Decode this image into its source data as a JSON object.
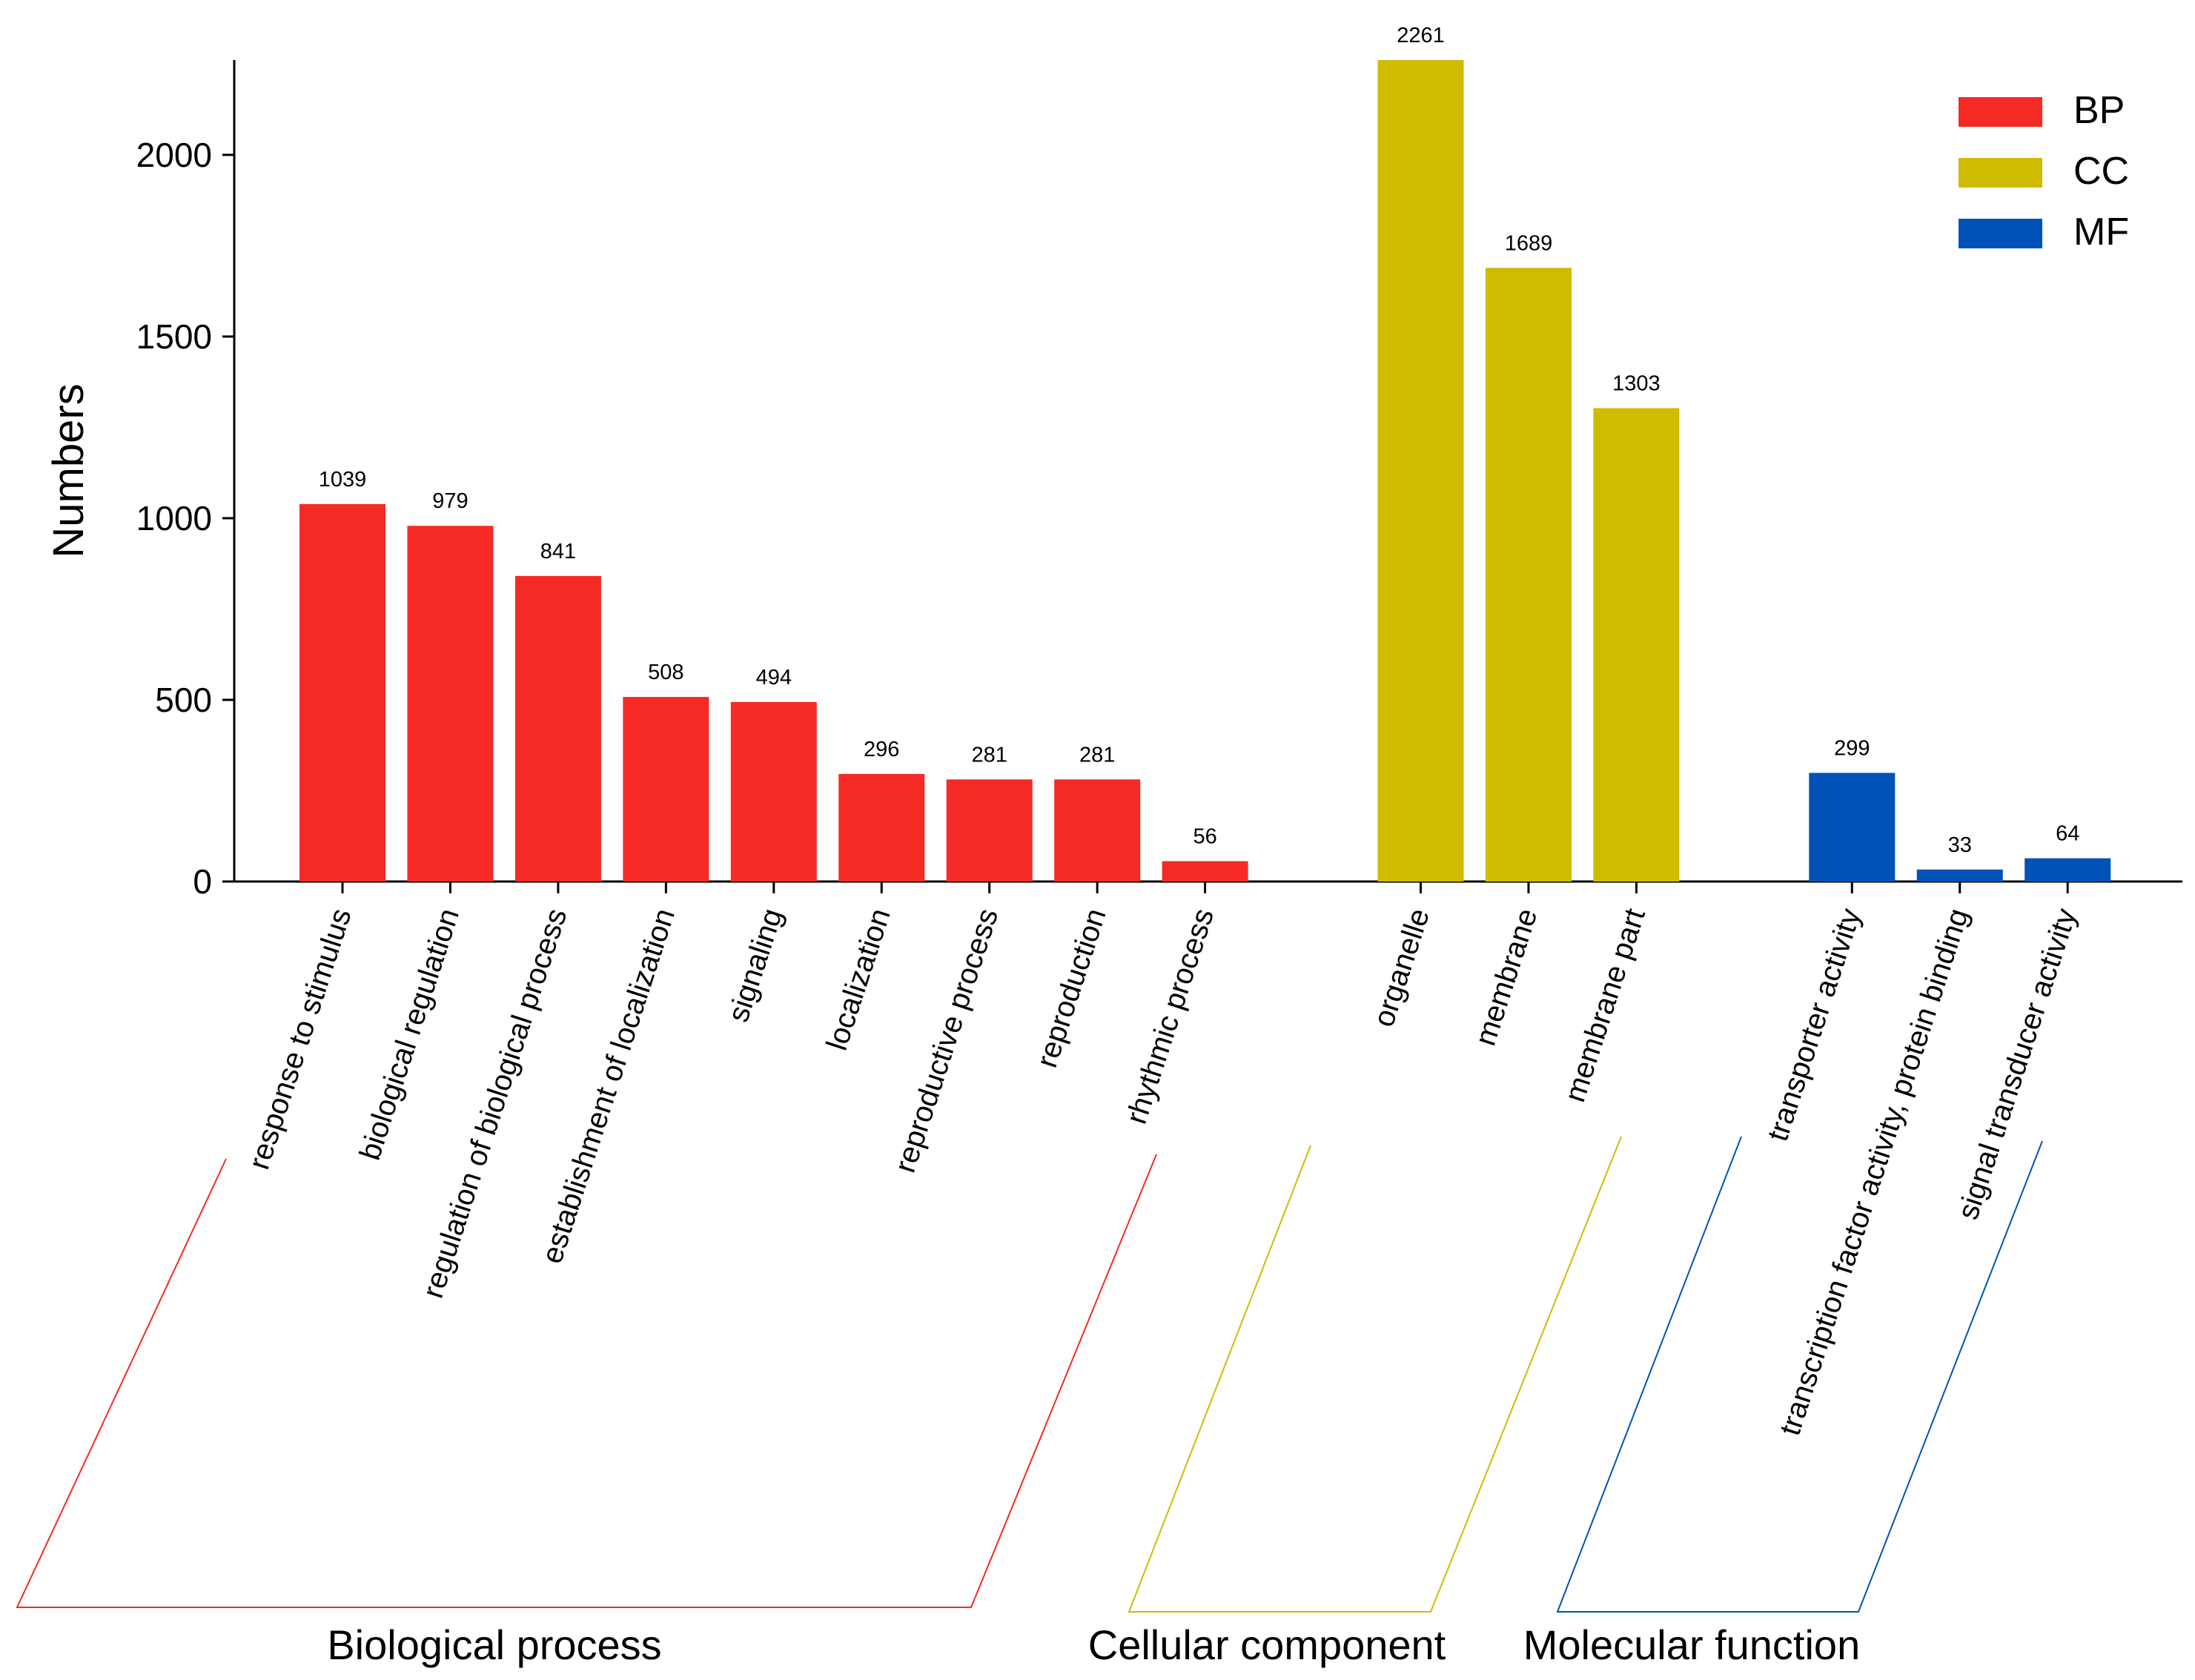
{
  "chart_data": {
    "type": "bar",
    "title": "",
    "xlabel": "",
    "ylabel": "Numbers",
    "ylim": [
      0,
      2261
    ],
    "yticks": [
      0,
      500,
      1000,
      1500,
      2000
    ],
    "grid": false,
    "legend_position": "top-right",
    "legend": [
      {
        "key": "BP",
        "label": "BP",
        "color": "#f52a25"
      },
      {
        "key": "CC",
        "label": "CC",
        "color": "#cfbc00"
      },
      {
        "key": "MF",
        "label": "MF",
        "color": "#0052b6"
      }
    ],
    "groups": [
      {
        "key": "BP",
        "name": "Biological process",
        "color": "#f52a25",
        "categories": [
          "response to stimulus",
          "biological regulation",
          "regulation of biological process",
          "establishment of localization",
          "signaling",
          "localization",
          "reproductive process",
          "reproduction",
          "rhythmic process"
        ],
        "values": [
          1039,
          979,
          841,
          508,
          494,
          296,
          281,
          281,
          56
        ]
      },
      {
        "key": "CC",
        "name": "Cellular component",
        "color": "#cfbc00",
        "categories": [
          "organelle",
          "membrane",
          "membrane part"
        ],
        "values": [
          2261,
          1689,
          1303
        ]
      },
      {
        "key": "MF",
        "name": "Molecular function",
        "color": "#0052b6",
        "categories": [
          "transporter activity",
          "transcription factor activity, protein binding",
          "signal transducer activity"
        ],
        "values": [
          299,
          33,
          64
        ]
      }
    ]
  }
}
